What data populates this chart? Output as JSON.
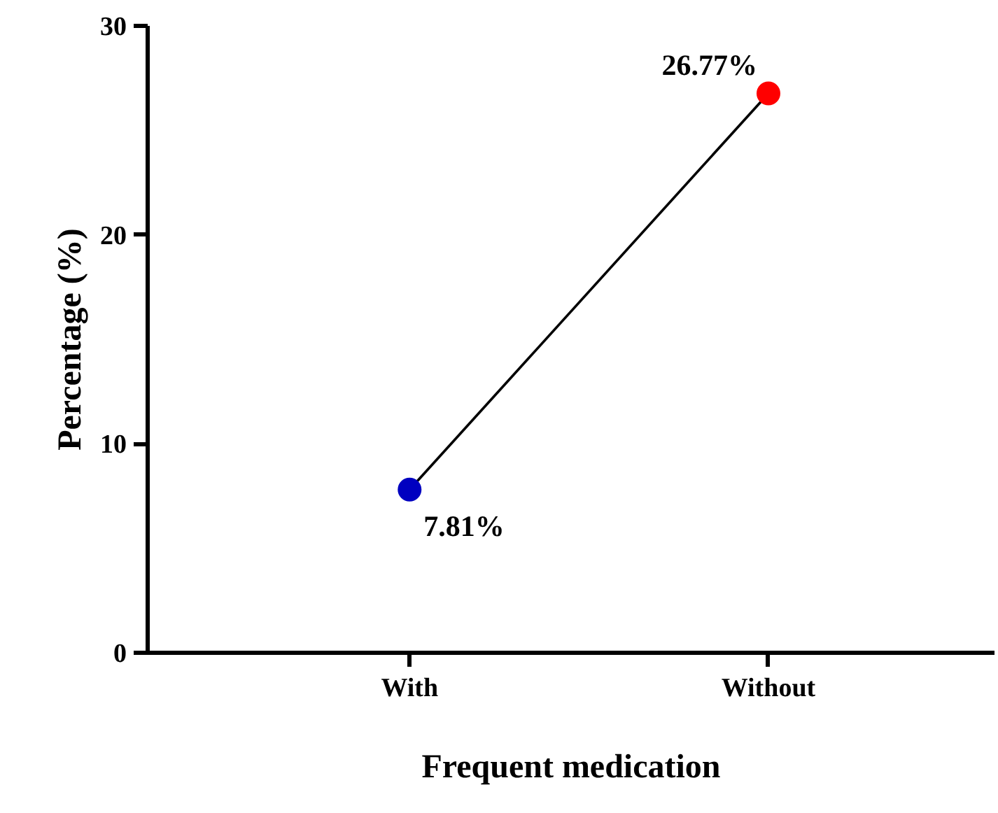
{
  "chart_data": {
    "type": "line",
    "xlabel": "Frequent medication",
    "ylabel": "Percentage (%)",
    "categories": [
      "With",
      "Without"
    ],
    "values": [
      7.81,
      26.77
    ],
    "color": "#000000",
    "colors": [
      "#0000c0",
      "#ff0000"
    ],
    "value_labels": [
      "7.81%",
      "26.77%"
    ],
    "marker": "circle",
    "line_style": "solid",
    "ylim": [
      0,
      30
    ],
    "yticks": [
      0,
      10,
      20,
      30
    ],
    "grid": false
  }
}
